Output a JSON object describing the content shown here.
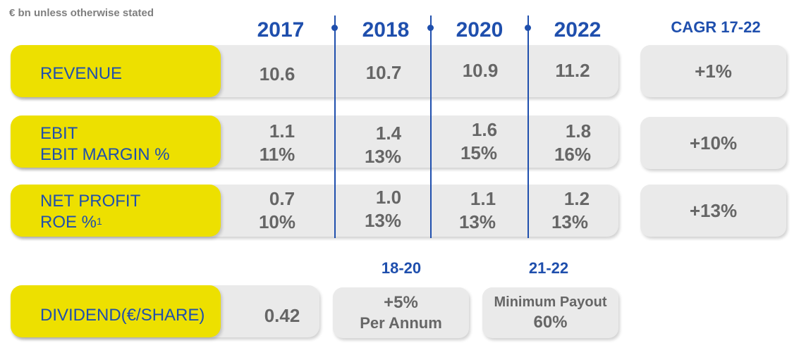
{
  "note": "€ bn unless otherwise stated",
  "years": [
    "2017",
    "2018",
    "2020",
    "2022"
  ],
  "cagr_header": "CAGR 17-22",
  "rows": [
    {
      "label_lines": [
        "REVENUE"
      ],
      "values": [
        [
          "10.6"
        ],
        [
          "10.7"
        ],
        [
          "10.9"
        ],
        [
          "11.2"
        ]
      ],
      "cagr": "+1%"
    },
    {
      "label_lines": [
        "EBIT",
        "EBIT MARGIN %"
      ],
      "values": [
        [
          "1.1",
          "11%"
        ],
        [
          "1.4",
          "13%"
        ],
        [
          "1.6",
          "15%"
        ],
        [
          "1.8",
          "16%"
        ]
      ],
      "cagr": "+10%"
    },
    {
      "label_lines": [
        "NET PROFIT",
        "ROE %"
      ],
      "footnote": "1",
      "values": [
        [
          "0.7",
          "10%"
        ],
        [
          "1.0",
          "13%"
        ],
        [
          "1.1",
          "13%"
        ],
        [
          "1.2",
          "13%"
        ]
      ],
      "cagr": "+13%"
    }
  ],
  "dividend": {
    "label": "DIVIDEND(€/SHARE)",
    "value_2017": "0.42",
    "periods": [
      "18-20",
      "21-22"
    ],
    "period_18_20": {
      "line1": "+5%",
      "line2": "Per Annum"
    },
    "period_21_22": {
      "line1": "Minimum Payout",
      "line2": "60%"
    }
  },
  "colors": {
    "accent": "#1f4fad",
    "yellow": "#ede000",
    "gray_box": "#eaeaea",
    "value_text": "#666666"
  }
}
